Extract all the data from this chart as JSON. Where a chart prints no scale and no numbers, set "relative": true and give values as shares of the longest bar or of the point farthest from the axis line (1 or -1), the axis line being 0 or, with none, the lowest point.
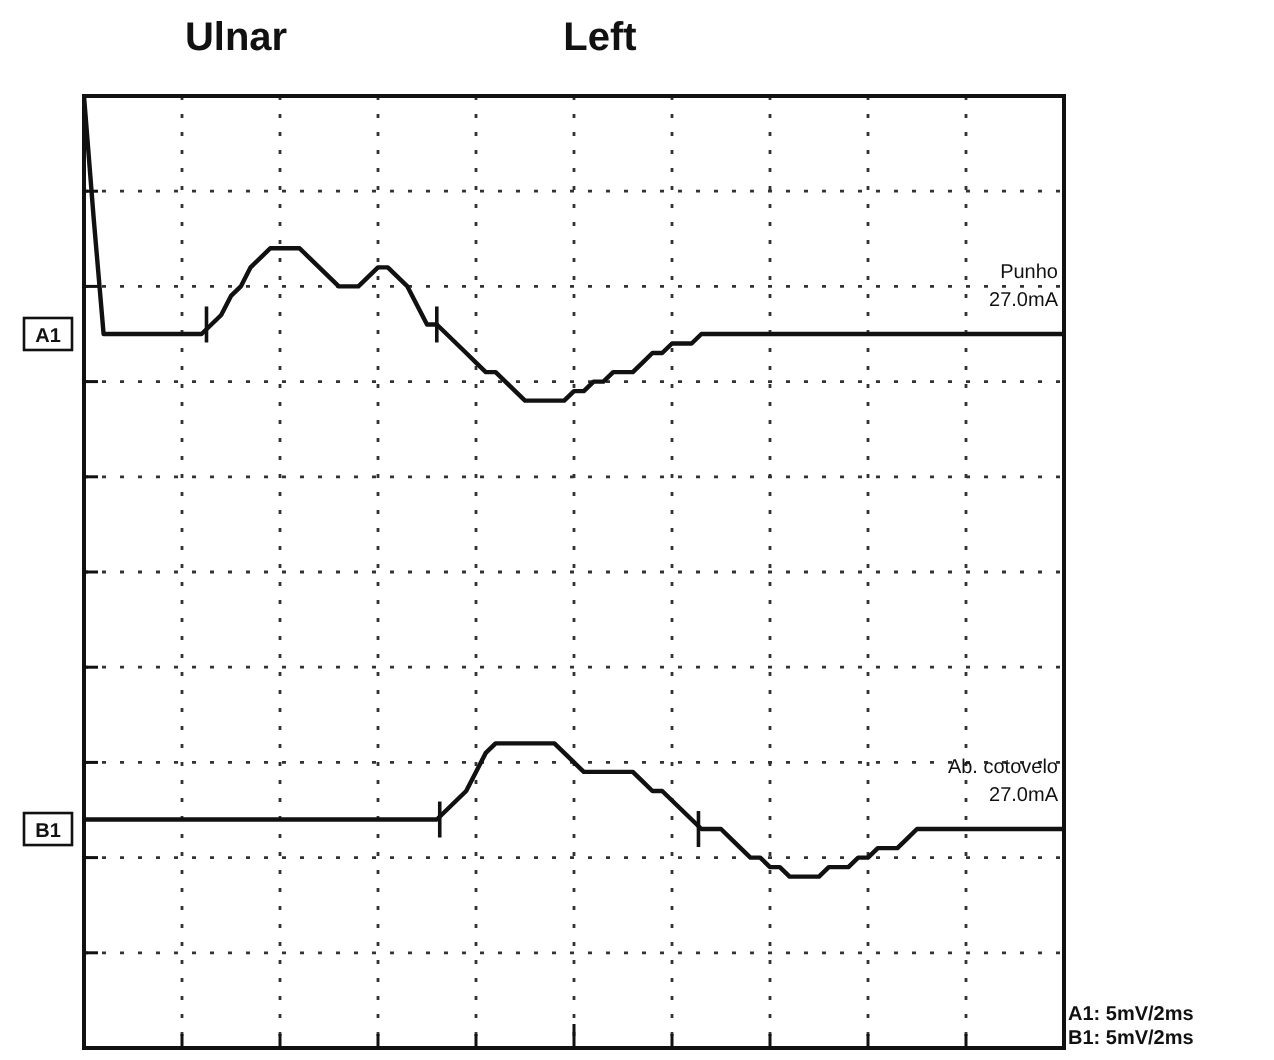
{
  "chart_data": {
    "type": "line",
    "title": "Ulnar",
    "subtitle": "Left",
    "relative": true,
    "grid": true,
    "legend": false,
    "marker": "none",
    "line_style": "solid",
    "categories": [
      null,
      null,
      null,
      null,
      null,
      null,
      null,
      null,
      null,
      null,
      null,
      null,
      null,
      null,
      null,
      null,
      null,
      null,
      null,
      null,
      null,
      null,
      null,
      null,
      null,
      null,
      null,
      null,
      null,
      null,
      null,
      null,
      null,
      null,
      null,
      null,
      null,
      null,
      null,
      null,
      null,
      null,
      null,
      null,
      null,
      null,
      null,
      null,
      null,
      null,
      null,
      null,
      null,
      null,
      null,
      null,
      null,
      null,
      null,
      null,
      null,
      null,
      null,
      null,
      null,
      null,
      null,
      null,
      null,
      null,
      null,
      null,
      null,
      null,
      null,
      null,
      null,
      null,
      null,
      null,
      null,
      null,
      null,
      null,
      null,
      null,
      null,
      null,
      null,
      null,
      null,
      null,
      null,
      null,
      null,
      null,
      null,
      null,
      null,
      null,
      null
    ],
    "series": [
      {
        "name": "A1",
        "color": "#111111",
        "values": [
          1.0,
          0.87,
          0.75,
          0.75,
          0.75,
          0.75,
          0.75,
          0.75,
          0.75,
          0.75,
          0.75,
          0.75,
          0.75,
          0.76,
          0.77,
          0.79,
          0.8,
          0.82,
          0.83,
          0.84,
          0.84,
          0.84,
          0.84,
          0.83,
          0.82,
          0.81,
          0.8,
          0.8,
          0.8,
          0.81,
          0.82,
          0.82,
          0.81,
          0.8,
          0.78,
          0.76,
          0.76,
          0.75,
          0.74,
          0.73,
          0.72,
          0.71,
          0.71,
          0.7,
          0.69,
          0.68,
          0.68,
          0.68,
          0.68,
          0.68,
          0.69,
          0.69,
          0.7,
          0.7,
          0.71,
          0.71,
          0.71,
          0.72,
          0.73,
          0.73,
          0.74,
          0.74,
          0.74,
          0.75,
          0.75,
          0.75,
          0.75,
          0.75,
          0.75,
          0.75,
          0.75,
          0.75,
          0.75,
          0.75,
          0.75,
          0.75,
          0.75,
          0.75,
          0.75,
          0.75,
          0.75,
          0.75,
          0.75,
          0.75,
          0.75,
          0.75,
          0.75,
          0.75,
          0.75,
          0.75,
          0.75,
          0.75,
          0.75,
          0.75,
          0.75,
          0.75,
          0.75,
          0.75,
          0.75,
          0.75,
          0.75
        ]
      },
      {
        "name": "B1",
        "color": "#111111",
        "values": [
          0.24,
          0.24,
          0.24,
          0.24,
          0.24,
          0.24,
          0.24,
          0.24,
          0.24,
          0.24,
          0.24,
          0.24,
          0.24,
          0.24,
          0.24,
          0.24,
          0.24,
          0.24,
          0.24,
          0.24,
          0.24,
          0.24,
          0.24,
          0.24,
          0.24,
          0.24,
          0.24,
          0.24,
          0.24,
          0.24,
          0.24,
          0.24,
          0.24,
          0.24,
          0.24,
          0.24,
          0.24,
          0.25,
          0.26,
          0.27,
          0.29,
          0.31,
          0.32,
          0.32,
          0.32,
          0.32,
          0.32,
          0.32,
          0.32,
          0.31,
          0.3,
          0.29,
          0.29,
          0.29,
          0.29,
          0.29,
          0.29,
          0.28,
          0.27,
          0.27,
          0.26,
          0.25,
          0.24,
          0.23,
          0.23,
          0.23,
          0.22,
          0.21,
          0.2,
          0.2,
          0.19,
          0.19,
          0.18,
          0.18,
          0.18,
          0.18,
          0.19,
          0.19,
          0.19,
          0.2,
          0.2,
          0.21,
          0.21,
          0.21,
          0.22,
          0.23,
          0.23,
          0.23,
          0.23,
          0.23,
          0.23,
          0.23,
          0.23,
          0.23,
          0.23,
          0.23,
          0.23,
          0.23,
          0.23,
          0.23,
          0.23
        ]
      }
    ],
    "annotations": [
      "Punho\n27.0mA",
      "Ab. cotovelo\n27.0mA",
      "A1: 5mV/2ms",
      "B1: 5mV/2ms"
    ]
  }
}
